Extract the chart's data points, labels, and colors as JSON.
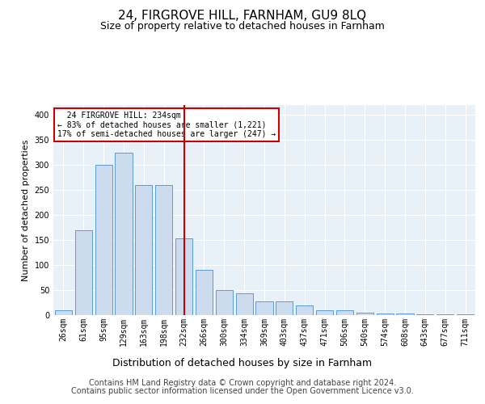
{
  "title1": "24, FIRGROVE HILL, FARNHAM, GU9 8LQ",
  "title2": "Size of property relative to detached houses in Farnham",
  "xlabel": "Distribution of detached houses by size in Farnham",
  "ylabel": "Number of detached properties",
  "bins": [
    "26sqm",
    "61sqm",
    "95sqm",
    "129sqm",
    "163sqm",
    "198sqm",
    "232sqm",
    "266sqm",
    "300sqm",
    "334sqm",
    "369sqm",
    "403sqm",
    "437sqm",
    "471sqm",
    "506sqm",
    "540sqm",
    "574sqm",
    "608sqm",
    "643sqm",
    "677sqm",
    "711sqm"
  ],
  "values": [
    10,
    170,
    300,
    325,
    260,
    260,
    153,
    90,
    50,
    43,
    27,
    27,
    20,
    10,
    9,
    5,
    4,
    4,
    2,
    2,
    2
  ],
  "bar_color": "#ccdcee",
  "bar_edge_color": "#5b9bd5",
  "vline_x_index": 6,
  "vline_color": "#cc0000",
  "annotation_line1": "  24 FIRGROVE HILL: 234sqm",
  "annotation_line2": "← 83% of detached houses are smaller (1,221)",
  "annotation_line3": "17% of semi-detached houses are larger (247) →",
  "annotation_box_color": "#ffffff",
  "annotation_box_edge": "#cc0000",
  "ylim": [
    0,
    420
  ],
  "yticks": [
    0,
    50,
    100,
    150,
    200,
    250,
    300,
    350,
    400
  ],
  "footer1": "Contains HM Land Registry data © Crown copyright and database right 2024.",
  "footer2": "Contains public sector information licensed under the Open Government Licence v3.0.",
  "plot_bg_color": "#e8f0f8",
  "title1_fontsize": 11,
  "title2_fontsize": 9,
  "xlabel_fontsize": 9,
  "ylabel_fontsize": 8,
  "tick_fontsize": 7,
  "annotation_fontsize": 7,
  "footer_fontsize": 7
}
